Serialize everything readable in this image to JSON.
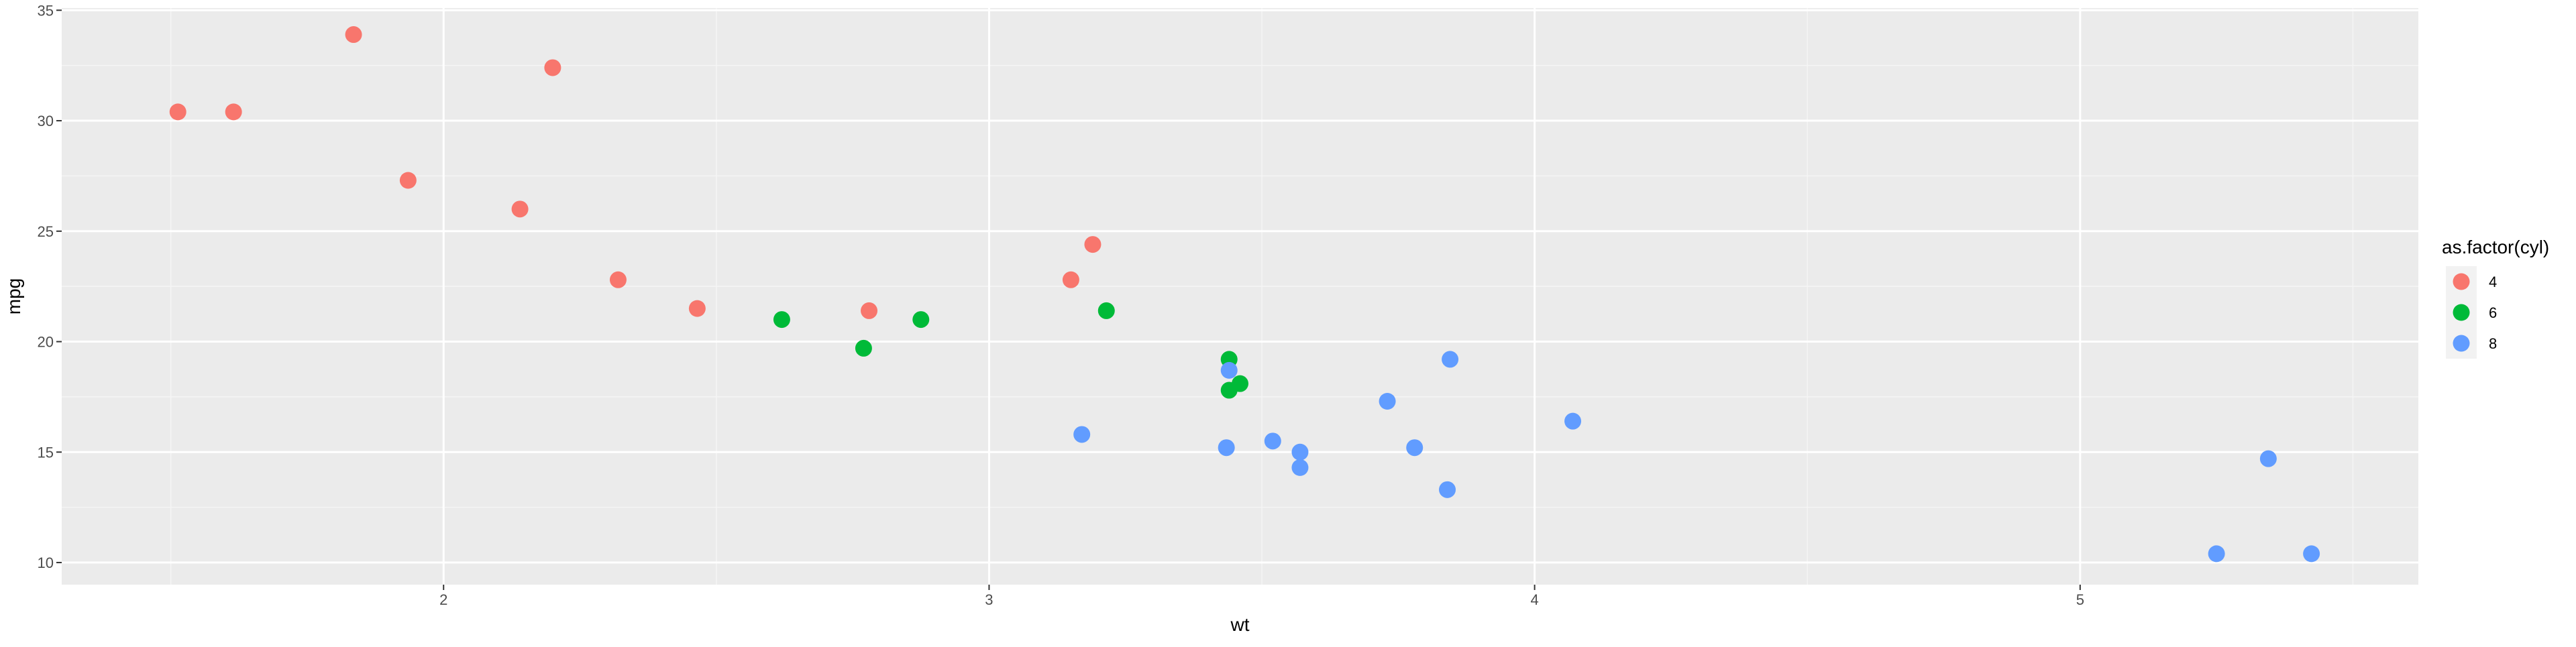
{
  "chart_data": {
    "type": "scatter",
    "title": "",
    "xlabel": "wt",
    "ylabel": "mpg",
    "xlim": [
      1.3,
      5.62
    ],
    "ylim": [
      9.0,
      35.1
    ],
    "x_ticks": [
      2,
      3,
      4,
      5
    ],
    "x_tick_labels": [
      "2",
      "3",
      "4",
      "5"
    ],
    "y_ticks": [
      10,
      15,
      20,
      25,
      30,
      35
    ],
    "y_tick_labels": [
      "10",
      "15",
      "20",
      "25",
      "30",
      "35"
    ],
    "grid": true,
    "legend": {
      "title": "as.factor(cyl)",
      "position": "right"
    },
    "series": [
      {
        "name": "4",
        "color": "#F8766D",
        "points": [
          {
            "x": 1.513,
            "y": 30.4
          },
          {
            "x": 1.615,
            "y": 30.4
          },
          {
            "x": 1.835,
            "y": 33.9
          },
          {
            "x": 1.935,
            "y": 27.3
          },
          {
            "x": 2.14,
            "y": 26.0
          },
          {
            "x": 2.2,
            "y": 32.4
          },
          {
            "x": 2.32,
            "y": 22.8
          },
          {
            "x": 2.465,
            "y": 21.5
          },
          {
            "x": 2.78,
            "y": 21.4
          },
          {
            "x": 3.15,
            "y": 22.8
          },
          {
            "x": 3.19,
            "y": 24.4
          }
        ]
      },
      {
        "name": "6",
        "color": "#00BA38",
        "points": [
          {
            "x": 2.62,
            "y": 21.0
          },
          {
            "x": 2.77,
            "y": 19.7
          },
          {
            "x": 2.875,
            "y": 21.0
          },
          {
            "x": 3.215,
            "y": 21.4
          },
          {
            "x": 3.44,
            "y": 17.8
          },
          {
            "x": 3.44,
            "y": 19.2
          },
          {
            "x": 3.46,
            "y": 18.1
          }
        ]
      },
      {
        "name": "8",
        "color": "#619CFF",
        "points": [
          {
            "x": 3.17,
            "y": 15.8
          },
          {
            "x": 3.435,
            "y": 15.2
          },
          {
            "x": 3.44,
            "y": 18.7
          },
          {
            "x": 3.52,
            "y": 15.5
          },
          {
            "x": 3.57,
            "y": 14.3
          },
          {
            "x": 3.57,
            "y": 15.0
          },
          {
            "x": 3.73,
            "y": 17.3
          },
          {
            "x": 3.78,
            "y": 15.2
          },
          {
            "x": 3.84,
            "y": 13.3
          },
          {
            "x": 3.845,
            "y": 19.2
          },
          {
            "x": 4.07,
            "y": 16.4
          },
          {
            "x": 5.25,
            "y": 10.4
          },
          {
            "x": 5.345,
            "y": 14.7
          },
          {
            "x": 5.424,
            "y": 10.4
          }
        ]
      }
    ]
  }
}
